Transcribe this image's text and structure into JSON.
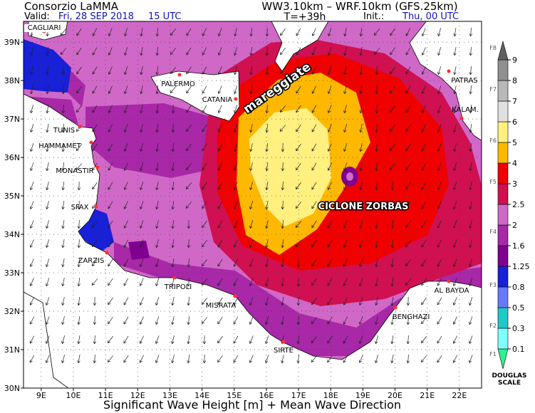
{
  "header": {
    "org": "Consorzio LaMMA",
    "valid_label": "Valid:",
    "valid_date": "Fri, 28 SEP 2018",
    "valid_time": "15 UTC",
    "models": "WW3.10km – WRF.10km (GFS.25km)",
    "lead_time": "T=+39h",
    "init_label": "Init.:",
    "init_time": "Thu, 00 UTC"
  },
  "map": {
    "xlim": [
      8.45,
      22.69
    ],
    "ylim": [
      30,
      39.54
    ],
    "grid": true,
    "xticks": [
      {
        "value": 9,
        "label": "9E"
      },
      {
        "value": 10,
        "label": "10E"
      },
      {
        "value": 11,
        "label": "11E"
      },
      {
        "value": 12,
        "label": "12E"
      },
      {
        "value": 13,
        "label": "13E"
      },
      {
        "value": 14,
        "label": "14E"
      },
      {
        "value": 15,
        "label": "15E"
      },
      {
        "value": 16,
        "label": "16E"
      },
      {
        "value": 17,
        "label": "17E"
      },
      {
        "value": 18,
        "label": "18E"
      },
      {
        "value": 19,
        "label": "19E"
      },
      {
        "value": 20,
        "label": "20E"
      },
      {
        "value": 21,
        "label": "21E"
      },
      {
        "value": 22,
        "label": "22E"
      }
    ],
    "yticks": [
      {
        "value": 30,
        "label": "30N"
      },
      {
        "value": 31,
        "label": "31N"
      },
      {
        "value": 32,
        "label": "32N"
      },
      {
        "value": 33,
        "label": "33N"
      },
      {
        "value": 34,
        "label": "34N"
      },
      {
        "value": 35,
        "label": "35N"
      },
      {
        "value": 36,
        "label": "36N"
      },
      {
        "value": 37,
        "label": "37N"
      },
      {
        "value": 38,
        "label": "38N"
      },
      {
        "value": 39,
        "label": "39N"
      }
    ],
    "cities": [
      "CAGLIARI",
      "PALERMO",
      "CATANIA",
      "TUNIS",
      "HAMMAMET",
      "MONASTIR",
      "SFAX",
      "ZARZIS",
      "TRIPOLI",
      "MISRATA",
      "SIRTE",
      "BENGHAZI",
      "AL BAYDA",
      "PATRAS",
      "KALAM."
    ],
    "annotations": [
      "mareggiate",
      "CICLONE ZORBAS"
    ]
  },
  "colorbar": {
    "levels": [
      0.1,
      0.3,
      0.5,
      0.8,
      1.25,
      1.6,
      2,
      2.5,
      3,
      4,
      5,
      6,
      7,
      8,
      9
    ],
    "colors": [
      "#30f090",
      "#80ffff",
      "#20c8c8",
      "#6878f8",
      "#1820d8",
      "#800090",
      "#a828a8",
      "#d068c8",
      "#d01050",
      "#f00000",
      "#ffb800",
      "#fff080",
      "#e0e0e0",
      "#b8b8b8",
      "#909090",
      "#606060"
    ],
    "douglas": [
      "F1",
      "F2",
      "F3",
      "F4",
      "F5",
      "F6",
      "F7",
      "F8"
    ],
    "scale_label": [
      "DOUGLAS",
      "SCALE"
    ]
  },
  "footer": "Significant Wave Height [m] + Mean Wave Direction"
}
